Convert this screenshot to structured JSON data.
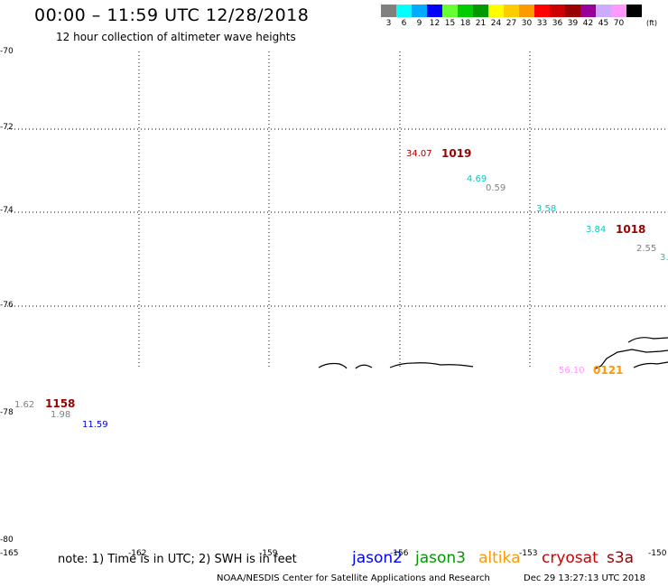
{
  "header": {
    "title": "00:00 – 11:59 UTC 12/28/2018",
    "subtitle": "12 hour collection of altimeter wave heights"
  },
  "colorbar": {
    "unit": "(ft)",
    "colors": [
      "#808080",
      "#00ffff",
      "#00aaff",
      "#0000ff",
      "#66ff33",
      "#00cc00",
      "#009900",
      "#ffff00",
      "#ffcc00",
      "#ff9900",
      "#ff0000",
      "#cc0000",
      "#990000",
      "#990099",
      "#ccaaff",
      "#ff99ff",
      "#000000"
    ],
    "labels": [
      "3",
      "6",
      "9",
      "12",
      "15",
      "18",
      "21",
      "24",
      "27",
      "30",
      "33",
      "36",
      "39",
      "42",
      "45",
      "70"
    ]
  },
  "axes": {
    "y_ticks": [
      "-70",
      "-72",
      "-74",
      "-76",
      "-78",
      "-80"
    ],
    "x_ticks": [
      "-165",
      "-162",
      "-159",
      "-156",
      "-153",
      "-150"
    ]
  },
  "observations": [
    {
      "swh": "34.07",
      "color": "#990000",
      "time": "1019",
      "time_color": "#990000"
    },
    {
      "swh": "4.69",
      "color": "#00cccc"
    },
    {
      "swh": "0.59",
      "color": "#808080"
    },
    {
      "swh": "3.58",
      "color": "#00cccc"
    },
    {
      "swh": "3.84",
      "color": "#00cccc",
      "time": "1018",
      "time_color": "#990000"
    },
    {
      "swh": "2.55",
      "color": "#808080"
    },
    {
      "swh": "3.",
      "color": "#00cccc"
    },
    {
      "swh": "56.10",
      "color": "#ff99ff",
      "time": "0121",
      "time_color": "#ff9900"
    },
    {
      "swh": "1.62",
      "color": "#808080",
      "time": "1158",
      "time_color": "#990000"
    },
    {
      "swh": "1.98",
      "color": "#808080"
    },
    {
      "swh": "11.59",
      "color": "#0000cc"
    }
  ],
  "footer": {
    "note": "note: 1) Time is in UTC; 2) SWH is in feet",
    "legend": [
      {
        "name": "jason2",
        "color": "#0000ff"
      },
      {
        "name": "jason3",
        "color": "#009900"
      },
      {
        "name": "altika",
        "color": "#ff9900"
      },
      {
        "name": "cryosat",
        "color": "#cc0000"
      },
      {
        "name": "s3a",
        "color": "#990000"
      }
    ],
    "credit": "NOAA/NESDIS Center for Satellite Applications and Research",
    "timestamp": "Dec 29 13:27:13 UTC 2018"
  }
}
